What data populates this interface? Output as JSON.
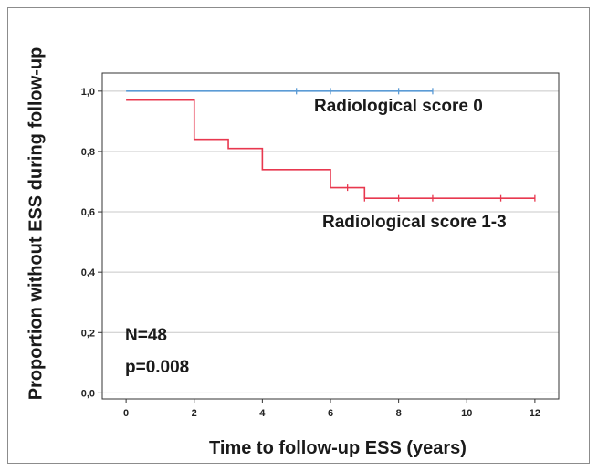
{
  "chart_data": {
    "type": "line",
    "step": true,
    "xlabel": "Time to follow-up ESS (years)",
    "ylabel": "Proportion without ESS during follow-up",
    "xlim": [
      -0.7,
      12.7
    ],
    "ylim": [
      -0.02,
      1.06
    ],
    "xticks": [
      0,
      2,
      4,
      6,
      8,
      10,
      12
    ],
    "xtick_labels": [
      "0",
      "2",
      "4",
      "6",
      "8",
      "10",
      "12"
    ],
    "yticks": [
      0.0,
      0.2,
      0.4,
      0.6,
      0.8,
      1.0
    ],
    "ytick_labels": [
      "0,0",
      "0,2",
      "0,4",
      "0,6",
      "0,8",
      "1,0"
    ],
    "grid": true,
    "series": [
      {
        "name": "Radiological score 0",
        "color": "#5b9bd5",
        "points": [
          [
            0,
            1.0
          ],
          [
            9,
            1.0
          ]
        ],
        "censored": [
          [
            5,
            1.0
          ],
          [
            6,
            1.0
          ],
          [
            8,
            1.0
          ],
          [
            9,
            1.0
          ]
        ]
      },
      {
        "name": "Radiological score 1-3",
        "color": "#e8384f",
        "points": [
          [
            0,
            0.97
          ],
          [
            2,
            0.97
          ],
          [
            2,
            0.84
          ],
          [
            3,
            0.84
          ],
          [
            3,
            0.81
          ],
          [
            4,
            0.81
          ],
          [
            4,
            0.74
          ],
          [
            6,
            0.74
          ],
          [
            6,
            0.68
          ],
          [
            7,
            0.68
          ],
          [
            7,
            0.645
          ],
          [
            12,
            0.645
          ]
        ],
        "censored": [
          [
            6.5,
            0.68
          ],
          [
            7,
            0.645
          ],
          [
            8,
            0.645
          ],
          [
            9,
            0.645
          ],
          [
            11,
            0.645
          ],
          [
            12,
            0.645
          ]
        ]
      }
    ],
    "annotations": [
      "N=48",
      "p=0.008"
    ]
  }
}
